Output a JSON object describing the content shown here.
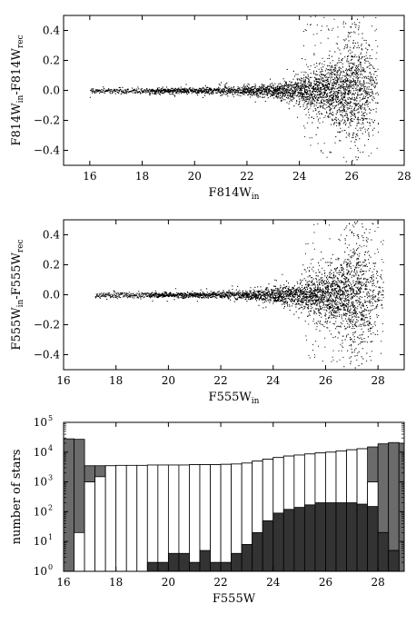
{
  "chart_data": [
    {
      "type": "scatter",
      "xlabel": "F814W",
      "xlabel_sub": "in",
      "ylabel_parts": [
        {
          "text": "F814W"
        },
        {
          "text": "in",
          "sub": true
        },
        {
          "text": "-F814W"
        },
        {
          "text": "rec",
          "sub": true
        }
      ],
      "xlim": [
        15,
        28
      ],
      "ylim": [
        -0.5,
        0.5
      ],
      "xticks": [
        16,
        18,
        20,
        22,
        24,
        26,
        28
      ],
      "yticks": [
        0.4,
        0.2,
        0.0,
        -0.2,
        -0.4
      ],
      "ytick_labels": [
        "0.4",
        "0.2",
        "0.0",
        "−0.2",
        "−0.4"
      ],
      "x_min_data": 16.0,
      "x_max_data": 27.0,
      "envelope": [
        [
          16.0,
          0.018
        ],
        [
          18.0,
          0.018
        ],
        [
          20.0,
          0.02
        ],
        [
          22.0,
          0.03
        ],
        [
          23.0,
          0.05
        ],
        [
          24.0,
          0.09
        ],
        [
          25.0,
          0.16
        ],
        [
          25.8,
          0.3
        ],
        [
          26.2,
          0.45
        ],
        [
          26.6,
          0.3
        ],
        [
          27.0,
          0.12
        ]
      ],
      "density": [
        [
          16.0,
          0.3
        ],
        [
          18.0,
          0.45
        ],
        [
          20.0,
          0.6
        ],
        [
          22.0,
          0.8
        ],
        [
          24.0,
          1.4
        ],
        [
          25.5,
          2.3
        ],
        [
          26.2,
          2.5
        ],
        [
          26.8,
          0.8
        ],
        [
          27.0,
          0.2
        ]
      ]
    },
    {
      "type": "scatter",
      "xlabel": "F555W",
      "xlabel_sub": "in",
      "ylabel_parts": [
        {
          "text": "F555W"
        },
        {
          "text": "in",
          "sub": true
        },
        {
          "text": "-F555W"
        },
        {
          "text": "rec",
          "sub": true
        }
      ],
      "xlim": [
        16,
        29
      ],
      "ylim": [
        -0.5,
        0.5
      ],
      "xticks": [
        16,
        18,
        20,
        22,
        24,
        26,
        28
      ],
      "yticks": [
        0.4,
        0.2,
        0.0,
        -0.2,
        -0.4
      ],
      "ytick_labels": [
        "0.4",
        "0.2",
        "0.0",
        "−0.2",
        "−0.4"
      ],
      "x_min_data": 17.2,
      "x_max_data": 28.2,
      "envelope": [
        [
          17.2,
          0.018
        ],
        [
          19.0,
          0.018
        ],
        [
          21.0,
          0.02
        ],
        [
          23.0,
          0.03
        ],
        [
          24.0,
          0.05
        ],
        [
          25.0,
          0.09
        ],
        [
          26.0,
          0.16
        ],
        [
          26.8,
          0.3
        ],
        [
          27.2,
          0.45
        ],
        [
          27.7,
          0.3
        ],
        [
          28.2,
          0.12
        ]
      ],
      "density": [
        [
          17.2,
          0.3
        ],
        [
          19.0,
          0.45
        ],
        [
          21.0,
          0.6
        ],
        [
          23.0,
          0.8
        ],
        [
          25.0,
          1.4
        ],
        [
          26.5,
          2.3
        ],
        [
          27.2,
          2.5
        ],
        [
          27.8,
          0.8
        ],
        [
          28.2,
          0.2
        ]
      ]
    },
    {
      "type": "bar",
      "xlabel": "F555W",
      "ylabel": "number of stars",
      "xlim": [
        16,
        29
      ],
      "ylim": [
        1,
        100000
      ],
      "yscale": "log",
      "xticks": [
        16,
        18,
        20,
        22,
        24,
        26,
        28
      ],
      "yticks": [
        1,
        10,
        100,
        1000,
        10000,
        100000
      ],
      "ytick_exponents": [
        "0",
        "1",
        "2",
        "3",
        "4",
        "5"
      ],
      "bin_start": 16.0,
      "bin_width": 0.4,
      "series": [
        {
          "color": "#6b6b6b",
          "values": [
            28000,
            27000,
            3500,
            3500,
            3500,
            3600,
            3600,
            3600,
            3700,
            3700,
            3700,
            3700,
            3800,
            3800,
            3800,
            3900,
            4000,
            4300,
            5000,
            5800,
            6600,
            7400,
            8000,
            8700,
            9400,
            10000,
            11000,
            12000,
            13000,
            15000,
            19000,
            21000,
            20000
          ]
        },
        {
          "color": "#ffffff",
          "values": [
            1,
            20,
            1000,
            1500,
            3500,
            3600,
            3600,
            3600,
            3700,
            3700,
            3700,
            3700,
            3800,
            3800,
            3800,
            3900,
            4000,
            4300,
            5000,
            5800,
            6600,
            7400,
            8000,
            8700,
            9400,
            10000,
            11000,
            12000,
            13000,
            1000,
            20,
            5,
            1
          ]
        },
        {
          "color": "#333333",
          "values": [
            1,
            1,
            1,
            1,
            1,
            1,
            1,
            1,
            2,
            2,
            4,
            4,
            2,
            5,
            2,
            2,
            4,
            8,
            20,
            50,
            90,
            120,
            140,
            170,
            200,
            200,
            200,
            200,
            180,
            150,
            20,
            5,
            1
          ]
        }
      ]
    }
  ]
}
